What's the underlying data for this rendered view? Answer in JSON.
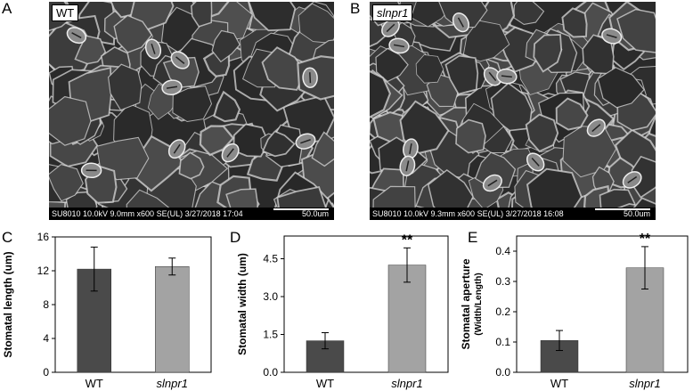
{
  "panels": {
    "A": {
      "letter": "A",
      "tag": "WT",
      "meta": "SU8010 10.0kV 9.0mm x600 SE(UL) 3/27/2018 17:04",
      "scale": "50.0um"
    },
    "B": {
      "letter": "B",
      "tag": "slnpr1",
      "meta": "SU8010 10.0kV 9.3mm x600 SE(UL) 3/27/2018 16:08",
      "scale": "50.0um"
    }
  },
  "colors": {
    "wt_bar": "#4a4a4a",
    "mutant_bar": "#a3a3a3"
  },
  "chart_data": [
    {
      "letter": "C",
      "type": "bar",
      "categories": [
        "WT",
        "slnpr1"
      ],
      "values": [
        12.2,
        12.5
      ],
      "errors": [
        2.6,
        1.0
      ],
      "ylabel": "Stomatal length (um)",
      "ylabel2": "",
      "ylim": [
        0,
        16
      ],
      "yticks": [
        0,
        4,
        8,
        12,
        16
      ],
      "tick_decimals": 0,
      "significance": [
        "",
        ""
      ]
    },
    {
      "letter": "D",
      "type": "bar",
      "categories": [
        "WT",
        "slnpr1"
      ],
      "values": [
        1.25,
        4.25
      ],
      "errors": [
        0.32,
        0.68
      ],
      "ylabel": "Stomatal width (um)",
      "ylabel2": "",
      "ylim": [
        0,
        5.4
      ],
      "yticks": [
        0,
        1.5,
        3.0,
        4.5
      ],
      "tick_decimals": 1,
      "significance": [
        "",
        "**"
      ]
    },
    {
      "letter": "E",
      "type": "bar",
      "categories": [
        "WT",
        "slnpr1"
      ],
      "values": [
        0.105,
        0.345
      ],
      "errors": [
        0.033,
        0.07
      ],
      "ylabel": "Stomatal aperture",
      "ylabel2": "(Width/Length)",
      "ylim": [
        0,
        0.45
      ],
      "yticks": [
        0,
        0.1,
        0.2,
        0.3,
        0.4
      ],
      "tick_decimals": 1,
      "significance": [
        "",
        "**"
      ]
    }
  ]
}
